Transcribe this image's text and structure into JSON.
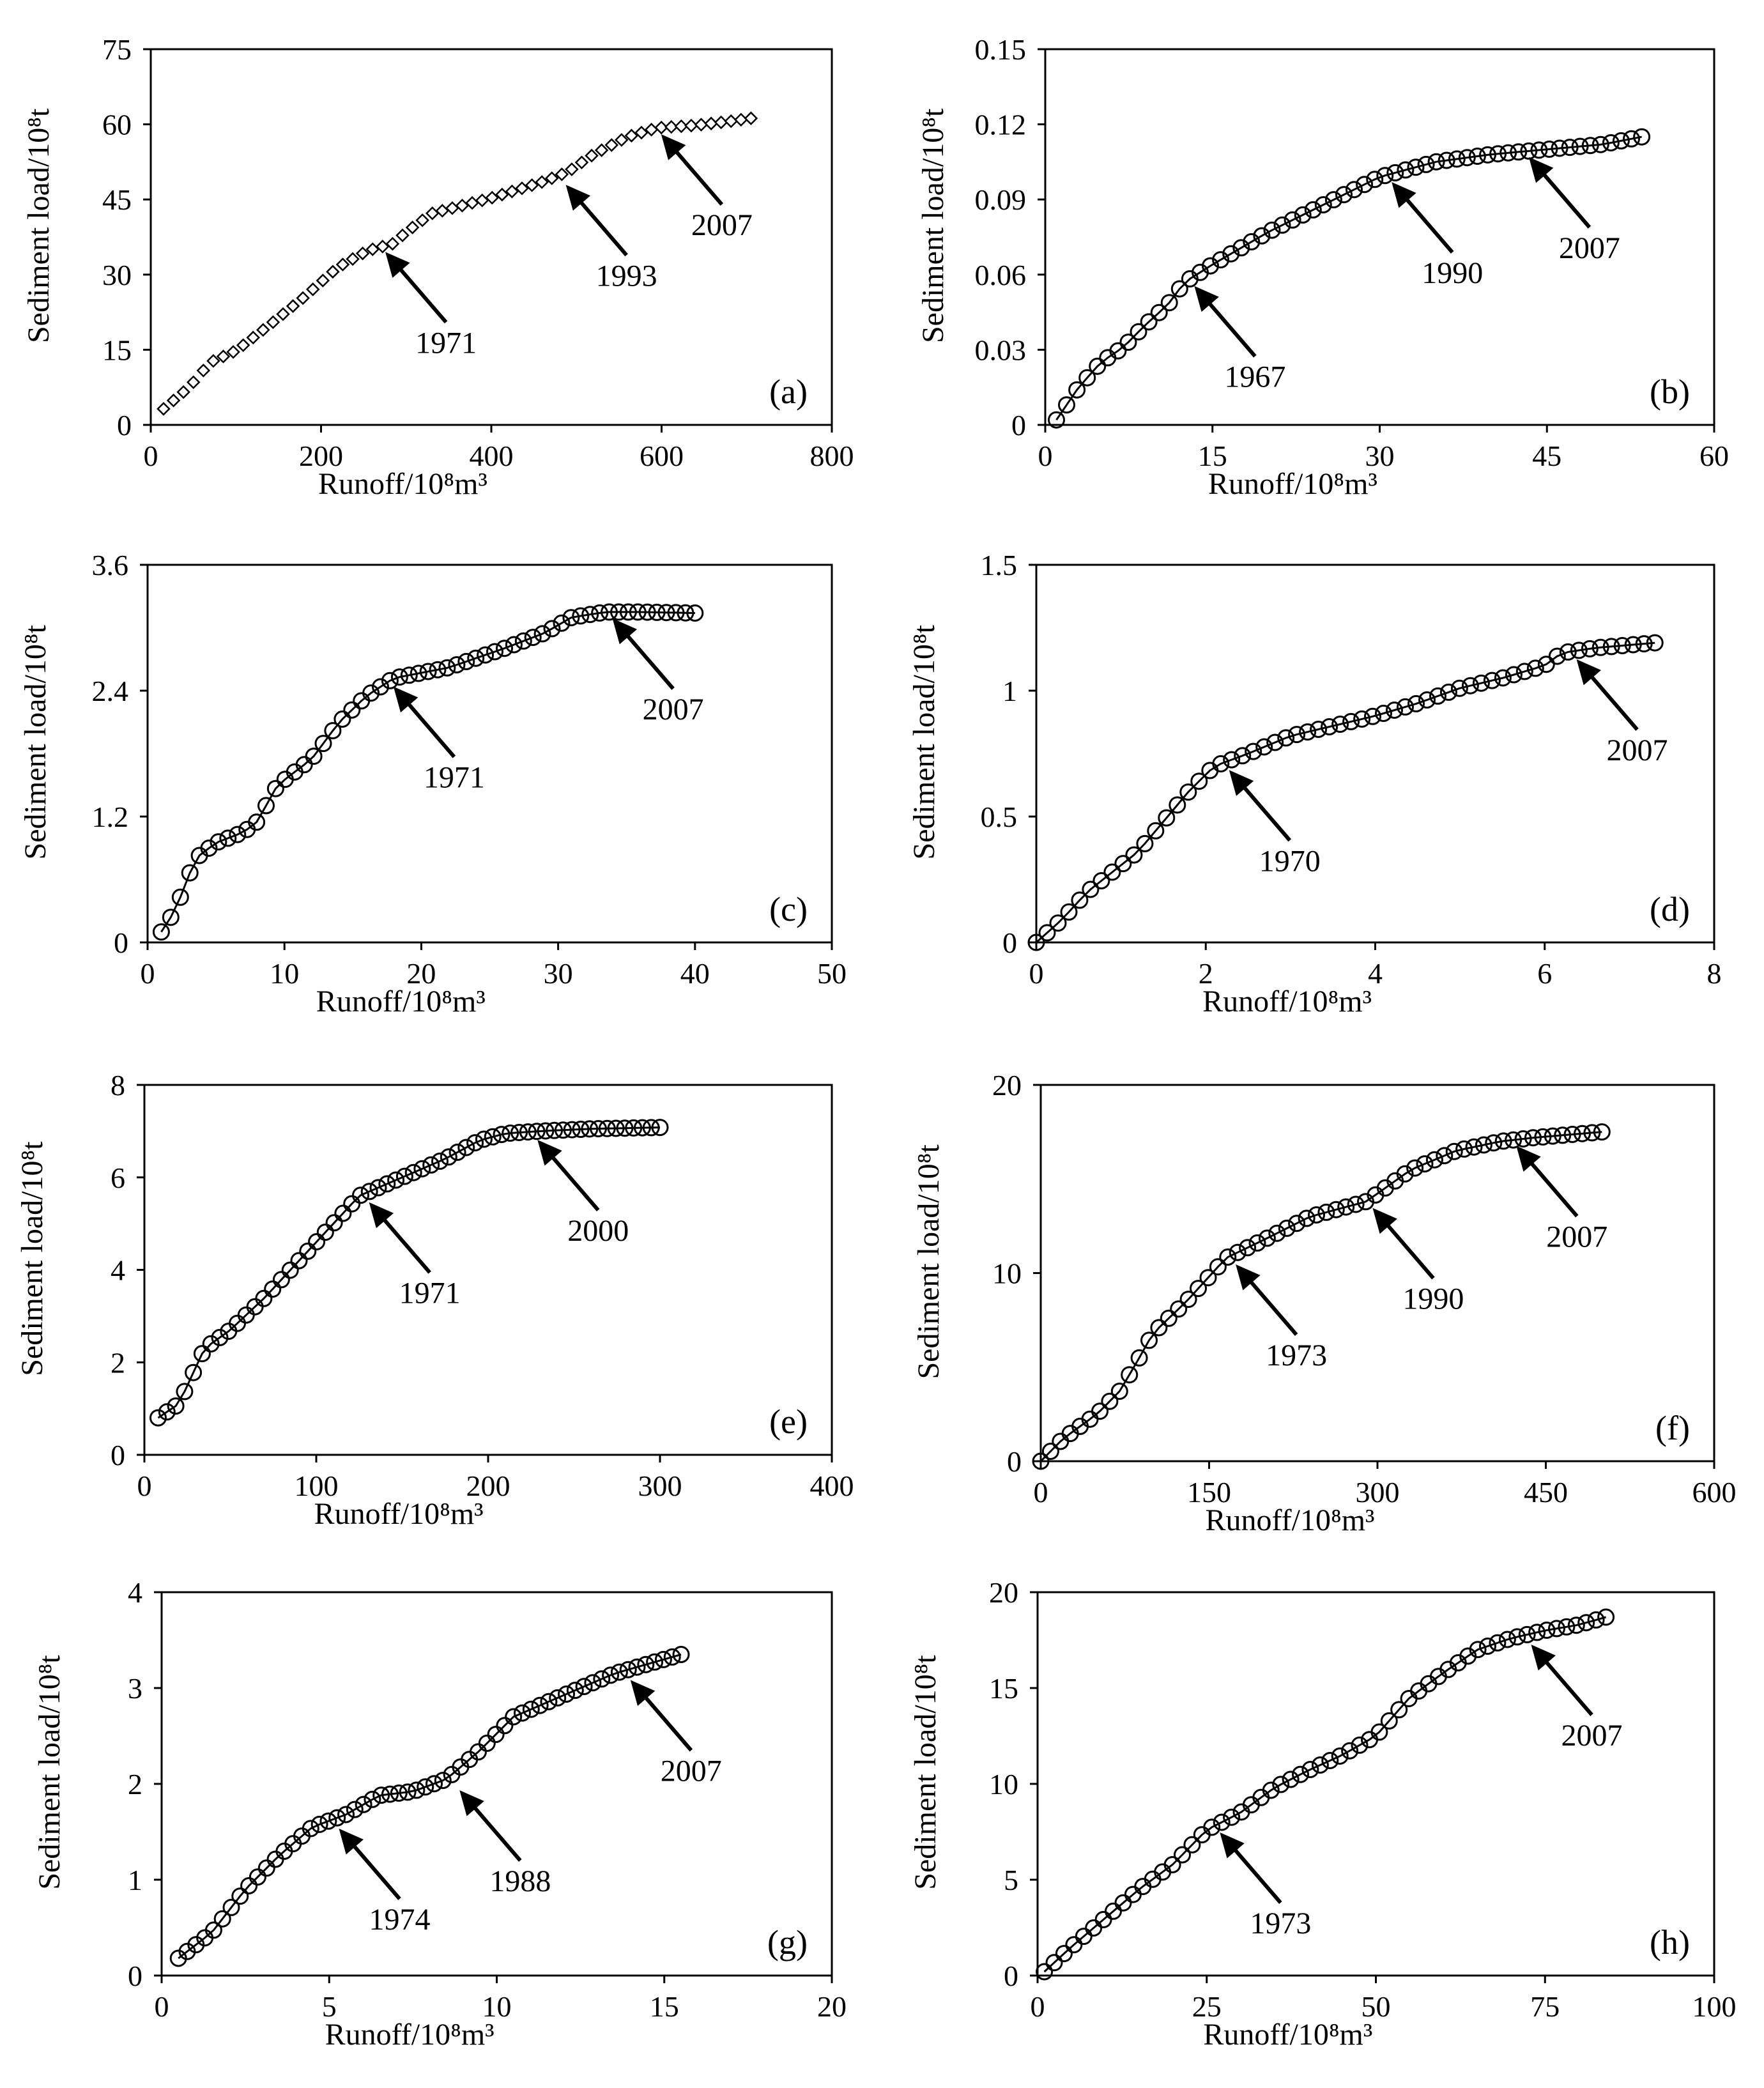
{
  "figure": {
    "ylabel": "Sediment load/10⁸t",
    "xlabel": "Runoff/10⁸m³"
  },
  "chart_data": [
    {
      "type": "scatter",
      "panel_label": "(a)",
      "marker": "diamond",
      "connected": false,
      "xlabel": "Runoff/10⁸m³",
      "ylabel": "Sediment load/10⁸t",
      "xlim": [
        0,
        800
      ],
      "ylim": [
        0,
        75
      ],
      "xticks": [
        "0",
        "200",
        "400",
        "600",
        "800"
      ],
      "yticks": [
        "0",
        "15",
        "30",
        "45",
        "60",
        "75"
      ],
      "anchors": [
        [
          15,
          3.2
        ],
        [
          45,
          7.5
        ],
        [
          70,
          12.5
        ],
        [
          100,
          14.8
        ],
        [
          140,
          20.0
        ],
        [
          180,
          25.5
        ],
        [
          220,
          31.5
        ],
        [
          255,
          34.8
        ],
        [
          285,
          36.2
        ],
        [
          300,
          38.5
        ],
        [
          330,
          42.2
        ],
        [
          400,
          45.3
        ],
        [
          460,
          48.5
        ],
        [
          490,
          50.5
        ],
        [
          520,
          54.0
        ],
        [
          560,
          57.5
        ],
        [
          595,
          59.3
        ],
        [
          640,
          59.8
        ],
        [
          680,
          60.6
        ],
        [
          705,
          61.2
        ]
      ],
      "n_points": 60,
      "annotations": [
        {
          "label": "1971",
          "x": 268,
          "y": 35.8
        },
        {
          "label": "1993",
          "x": 480,
          "y": 49.2
        },
        {
          "label": "2007",
          "x": 592,
          "y": 59.3
        }
      ]
    },
    {
      "type": "line",
      "panel_label": "(b)",
      "marker": "circle",
      "connected": true,
      "xlabel": "Runoff/10⁸m³",
      "ylabel": "Sediment load/10⁸t",
      "xlim": [
        0,
        60
      ],
      "ylim": [
        0,
        0.15
      ],
      "xticks": [
        "0",
        "15",
        "30",
        "45",
        "60"
      ],
      "yticks": [
        "0",
        "0.03",
        "0.06",
        "0.09",
        "0.12",
        "0.15"
      ],
      "anchors": [
        [
          1,
          0.002
        ],
        [
          3,
          0.015
        ],
        [
          5,
          0.025
        ],
        [
          7,
          0.031
        ],
        [
          9,
          0.04
        ],
        [
          11,
          0.048
        ],
        [
          12.5,
          0.057
        ],
        [
          15,
          0.064
        ],
        [
          20,
          0.077
        ],
        [
          25,
          0.088
        ],
        [
          30,
          0.099
        ],
        [
          35,
          0.105
        ],
        [
          40,
          0.108
        ],
        [
          45,
          0.11
        ],
        [
          50,
          0.112
        ],
        [
          53.5,
          0.115
        ]
      ],
      "n_points": 58,
      "annotations": [
        {
          "label": "1967",
          "x": 12.8,
          "y": 0.058
        },
        {
          "label": "1990",
          "x": 30.5,
          "y": 0.0995
        },
        {
          "label": "2007",
          "x": 42.8,
          "y": 0.1095
        }
      ]
    },
    {
      "type": "line",
      "panel_label": "(c)",
      "marker": "circle",
      "connected": true,
      "xlabel": "Runoff/10⁸m³",
      "ylabel": "Sediment load/10⁸t",
      "xlim": [
        0,
        50
      ],
      "ylim": [
        0,
        3.6
      ],
      "xticks": [
        "0",
        "10",
        "20",
        "30",
        "40",
        "50"
      ],
      "yticks": [
        "0",
        "1.2",
        "2.4",
        "3.6"
      ],
      "anchors": [
        [
          1,
          0.1
        ],
        [
          2,
          0.3
        ],
        [
          3.5,
          0.8
        ],
        [
          5,
          0.95
        ],
        [
          7,
          1.05
        ],
        [
          8,
          1.15
        ],
        [
          9.5,
          1.5
        ],
        [
          12,
          1.75
        ],
        [
          14,
          2.1
        ],
        [
          16,
          2.35
        ],
        [
          18,
          2.52
        ],
        [
          22,
          2.62
        ],
        [
          26,
          2.8
        ],
        [
          29,
          2.95
        ],
        [
          31,
          3.1
        ],
        [
          33.5,
          3.15
        ],
        [
          36,
          3.15
        ],
        [
          40,
          3.14
        ]
      ],
      "n_points": 57,
      "annotations": [
        {
          "label": "1971",
          "x": 17.5,
          "y": 2.5
        },
        {
          "label": "2007",
          "x": 33.5,
          "y": 3.15
        }
      ]
    },
    {
      "type": "line",
      "panel_label": "(d)",
      "marker": "circle",
      "connected": true,
      "xlabel": "Runoff/10⁸m³",
      "ylabel": "Sediment load/10⁸t",
      "xlim": [
        0,
        8
      ],
      "ylim": [
        0,
        1.5
      ],
      "xticks": [
        "0",
        "2",
        "4",
        "6",
        "8"
      ],
      "yticks": [
        "0",
        "0.5",
        "1",
        "1.5"
      ],
      "anchors": [
        [
          0,
          0.0
        ],
        [
          0.3,
          0.09
        ],
        [
          0.6,
          0.2
        ],
        [
          0.9,
          0.28
        ],
        [
          1.2,
          0.36
        ],
        [
          1.5,
          0.48
        ],
        [
          1.8,
          0.6
        ],
        [
          2.1,
          0.7
        ],
        [
          2.5,
          0.75
        ],
        [
          3,
          0.82
        ],
        [
          3.5,
          0.86
        ],
        [
          4,
          0.9
        ],
        [
          4.5,
          0.95
        ],
        [
          5,
          1.01
        ],
        [
          5.5,
          1.05
        ],
        [
          6,
          1.1
        ],
        [
          6.2,
          1.15
        ],
        [
          6.6,
          1.17
        ],
        [
          7.3,
          1.19
        ]
      ],
      "n_points": 58,
      "annotations": [
        {
          "label": "1970",
          "x": 2.2,
          "y": 0.71
        },
        {
          "label": "2007",
          "x": 6.3,
          "y": 1.15
        }
      ]
    },
    {
      "type": "line",
      "panel_label": "(e)",
      "marker": "circle",
      "connected": true,
      "xlabel": "Runoff/10⁸m³",
      "ylabel": "Sediment load/10⁸t",
      "xlim": [
        0,
        400
      ],
      "ylim": [
        0,
        8
      ],
      "xticks": [
        "0",
        "100",
        "200",
        "300",
        "400"
      ],
      "yticks": [
        "0",
        "2",
        "4",
        "6",
        "8"
      ],
      "anchors": [
        [
          8,
          0.8
        ],
        [
          20,
          1.1
        ],
        [
          35,
          2.3
        ],
        [
          50,
          2.7
        ],
        [
          70,
          3.4
        ],
        [
          90,
          4.2
        ],
        [
          105,
          4.8
        ],
        [
          125,
          5.6
        ],
        [
          150,
          6.0
        ],
        [
          175,
          6.4
        ],
        [
          195,
          6.8
        ],
        [
          210,
          6.95
        ],
        [
          230,
          7.0
        ],
        [
          260,
          7.05
        ],
        [
          300,
          7.08
        ]
      ],
      "n_points": 58,
      "annotations": [
        {
          "label": "1971",
          "x": 127,
          "y": 5.6
        },
        {
          "label": "2000",
          "x": 225,
          "y": 6.95
        }
      ]
    },
    {
      "type": "line",
      "panel_label": "(f)",
      "marker": "circle",
      "connected": true,
      "xlabel": "Runoff/10⁸m³",
      "ylabel": "Sediment load/10⁸t",
      "xlim": [
        0,
        600
      ],
      "ylim": [
        0,
        20
      ],
      "xticks": [
        "0",
        "150",
        "300",
        "450",
        "600"
      ],
      "yticks": [
        "0",
        "10",
        "20"
      ],
      "anchors": [
        [
          0,
          0.0
        ],
        [
          20,
          1.2
        ],
        [
          50,
          2.5
        ],
        [
          70,
          3.7
        ],
        [
          85,
          5.2
        ],
        [
          100,
          6.8
        ],
        [
          130,
          8.5
        ],
        [
          165,
          10.8
        ],
        [
          200,
          11.8
        ],
        [
          240,
          13.0
        ],
        [
          290,
          13.8
        ],
        [
          330,
          15.5
        ],
        [
          370,
          16.5
        ],
        [
          410,
          17.0
        ],
        [
          440,
          17.2
        ],
        [
          500,
          17.5
        ]
      ],
      "n_points": 58,
      "annotations": [
        {
          "label": "1973",
          "x": 168,
          "y": 10.8
        },
        {
          "label": "1990",
          "x": 290,
          "y": 13.8
        },
        {
          "label": "2007",
          "x": 418,
          "y": 17.1
        }
      ]
    },
    {
      "type": "line",
      "panel_label": "(g)",
      "marker": "circle",
      "connected": true,
      "xlabel": "Runoff/10⁸m³",
      "ylabel": "Sediment load/10⁸t",
      "xlim": [
        0,
        20
      ],
      "ylim": [
        0,
        4
      ],
      "xticks": [
        "0",
        "5",
        "10",
        "15",
        "20"
      ],
      "yticks": [
        "0",
        "1",
        "2",
        "3",
        "4"
      ],
      "anchors": [
        [
          0.5,
          0.18
        ],
        [
          1.5,
          0.45
        ],
        [
          2.5,
          0.9
        ],
        [
          3.5,
          1.25
        ],
        [
          4.5,
          1.55
        ],
        [
          5.5,
          1.68
        ],
        [
          6.5,
          1.88
        ],
        [
          7.5,
          1.92
        ],
        [
          8.5,
          2.05
        ],
        [
          9.5,
          2.35
        ],
        [
          10.5,
          2.7
        ],
        [
          11.5,
          2.85
        ],
        [
          12.5,
          3.0
        ],
        [
          13.5,
          3.15
        ],
        [
          14.5,
          3.25
        ],
        [
          15.5,
          3.35
        ]
      ],
      "n_points": 58,
      "annotations": [
        {
          "label": "1974",
          "x": 5.1,
          "y": 1.6
        },
        {
          "label": "1988",
          "x": 8.7,
          "y": 2.0
        },
        {
          "label": "2007",
          "x": 13.8,
          "y": 3.15
        }
      ]
    },
    {
      "type": "line",
      "panel_label": "(h)",
      "marker": "circle",
      "connected": true,
      "xlabel": "Runoff/10⁸m³",
      "ylabel": "Sediment load/10⁸t",
      "xlim": [
        0,
        100
      ],
      "ylim": [
        0,
        20
      ],
      "xticks": [
        "0",
        "25",
        "50",
        "75",
        "100"
      ],
      "yticks": [
        "0",
        "5",
        "10",
        "15",
        "20"
      ],
      "anchors": [
        [
          1,
          0.2
        ],
        [
          5,
          1.5
        ],
        [
          10,
          3.0
        ],
        [
          15,
          4.5
        ],
        [
          20,
          5.8
        ],
        [
          25,
          7.6
        ],
        [
          30,
          8.5
        ],
        [
          35,
          9.8
        ],
        [
          40,
          10.7
        ],
        [
          45,
          11.5
        ],
        [
          50,
          12.5
        ],
        [
          55,
          14.5
        ],
        [
          60,
          15.8
        ],
        [
          65,
          17.0
        ],
        [
          70,
          17.6
        ],
        [
          75,
          18.0
        ],
        [
          80,
          18.3
        ],
        [
          84,
          18.7
        ]
      ],
      "n_points": 58,
      "annotations": [
        {
          "label": "1973",
          "x": 26,
          "y": 7.8
        },
        {
          "label": "2007",
          "x": 72,
          "y": 17.6
        }
      ]
    }
  ]
}
